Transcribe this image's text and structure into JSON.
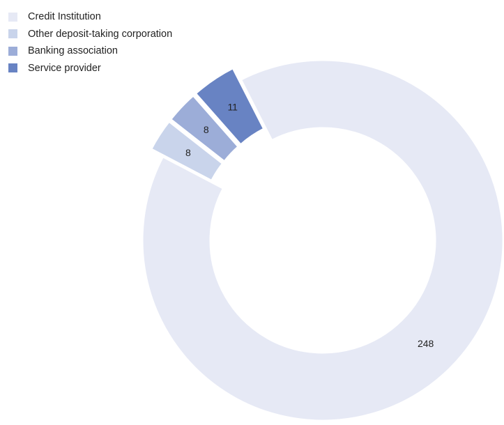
{
  "chart_data": {
    "type": "pie",
    "donut": true,
    "categories": [
      "Credit Institution",
      "Other deposit-taking corporation",
      "Banking association",
      "Service provider"
    ],
    "values": [
      248,
      8,
      8,
      11
    ],
    "colors": [
      "#e6e9f5",
      "#c9d4eb",
      "#9cadd8",
      "#6883c3"
    ],
    "exploded": [
      false,
      true,
      true,
      true
    ],
    "legend_position": "top-left",
    "title": "",
    "data_labels": [
      "248",
      "8",
      "8",
      "11"
    ]
  }
}
